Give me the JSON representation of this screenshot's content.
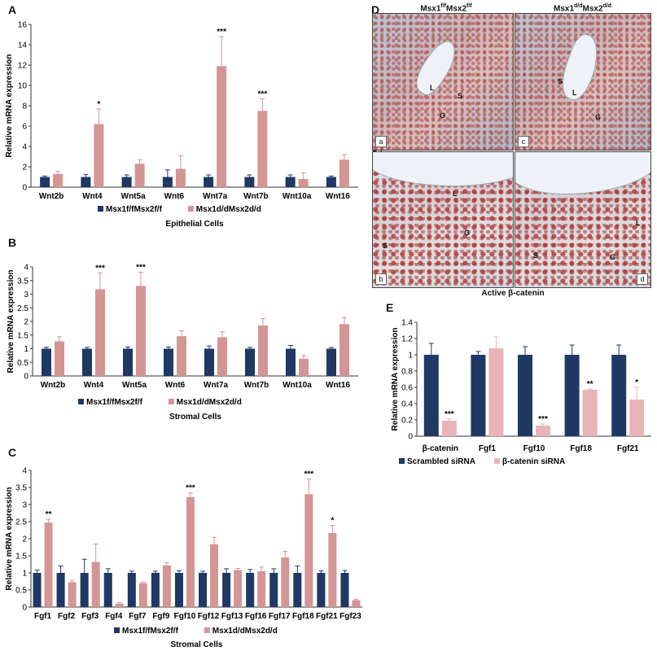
{
  "panels": {
    "A": "A",
    "B": "B",
    "C": "C",
    "D": "D",
    "E": "E"
  },
  "colors": {
    "dark": "#1f3864",
    "pink": "#d49595",
    "light_pink": "#e8b4b8"
  },
  "chart_data": [
    {
      "id": "A",
      "type": "bar",
      "title": "",
      "subtitle": "Epithelial Cells",
      "xlabel": "",
      "ylabel": "Relative mRNA expression",
      "ylim": [
        0,
        16
      ],
      "yticks": [
        0,
        2,
        4,
        6,
        8,
        10,
        12,
        14,
        16
      ],
      "categories": [
        "Wnt2b",
        "Wnt4",
        "Wnt5a",
        "Wnt6",
        "Wnt7a",
        "Wnt7b",
        "Wnt10a",
        "Wnt16"
      ],
      "series": [
        {
          "name": "Msx1f/fMsx2f/f",
          "color": "#1f3864",
          "values": [
            1.0,
            1.0,
            1.0,
            1.0,
            1.0,
            1.0,
            1.0,
            1.0
          ],
          "errors": [
            0.1,
            0.25,
            0.2,
            0.7,
            0.2,
            0.2,
            0.2,
            0.1
          ]
        },
        {
          "name": "Msx1d/dMsx2d/d",
          "color": "#d49595",
          "values": [
            1.3,
            6.2,
            2.3,
            1.8,
            11.9,
            7.5,
            0.8,
            2.7
          ],
          "errors": [
            0.25,
            1.5,
            0.4,
            1.3,
            2.9,
            1.2,
            0.6,
            0.5
          ]
        }
      ],
      "significance": [
        "",
        "*",
        "",
        "",
        "***",
        "***",
        "",
        ""
      ],
      "legend": "bottom"
    },
    {
      "id": "B",
      "type": "bar",
      "title": "",
      "subtitle": "Stromal Cells",
      "xlabel": "",
      "ylabel": "Relative mRNA expression",
      "ylim": [
        0,
        4
      ],
      "yticks": [
        0,
        0.5,
        1,
        1.5,
        2,
        2.5,
        3,
        3.5,
        4
      ],
      "categories": [
        "Wnt2b",
        "Wnt4",
        "Wnt5a",
        "Wnt6",
        "Wnt7a",
        "Wnt7b",
        "Wnt10a",
        "Wnt16"
      ],
      "series": [
        {
          "name": "Msx1f/fMsx2f/f",
          "color": "#1f3864",
          "values": [
            1.0,
            1.0,
            1.0,
            1.0,
            1.0,
            1.0,
            1.0,
            1.0
          ],
          "errors": [
            0.05,
            0.05,
            0.06,
            0.06,
            0.1,
            0.05,
            0.12,
            0.04
          ]
        },
        {
          "name": "Msx1d/dMsx2d/d",
          "color": "#d49595",
          "values": [
            1.27,
            3.18,
            3.3,
            1.46,
            1.42,
            1.85,
            0.63,
            1.9
          ],
          "errors": [
            0.17,
            0.6,
            0.5,
            0.2,
            0.2,
            0.25,
            0.12,
            0.25
          ]
        }
      ],
      "significance": [
        "",
        "***",
        "***",
        "",
        "",
        "",
        "",
        ""
      ],
      "legend": "bottom"
    },
    {
      "id": "C",
      "type": "bar",
      "title": "",
      "subtitle": "Stromal Cells",
      "xlabel": "",
      "ylabel": "Relative mRNA expression",
      "ylim": [
        0,
        4
      ],
      "yticks": [
        0,
        0.5,
        1,
        1.5,
        2,
        2.5,
        3,
        3.5,
        4
      ],
      "categories": [
        "Fgf1",
        "Fgf2",
        "Fgf3",
        "Fgf4",
        "Fgf7",
        "Fgf9",
        "Fgf10",
        "Fgf12",
        "Fgf13",
        "Fgf16",
        "Fgf17",
        "Fgf18",
        "Fgf21",
        "Fgf23"
      ],
      "series": [
        {
          "name": "Msx1f/fMsx2f/f",
          "color": "#1f3864",
          "values": [
            1.0,
            1.0,
            1.0,
            1.0,
            1.0,
            1.0,
            1.0,
            1.0,
            1.0,
            1.0,
            1.0,
            1.0,
            1.0,
            1.0
          ],
          "errors": [
            0.08,
            0.2,
            0.4,
            0.12,
            0.05,
            0.05,
            0.06,
            0.05,
            0.12,
            0.1,
            0.12,
            0.2,
            0.06,
            0.07
          ]
        },
        {
          "name": "Msx1d/dMsx2d/d",
          "color": "#d49595",
          "values": [
            2.47,
            0.73,
            1.32,
            0.1,
            0.7,
            1.22,
            3.22,
            1.84,
            1.08,
            1.05,
            1.45,
            3.3,
            2.17,
            0.2
          ],
          "errors": [
            0.1,
            0.05,
            0.52,
            0.03,
            0.03,
            0.08,
            0.12,
            0.2,
            0.05,
            0.12,
            0.18,
            0.45,
            0.22,
            0.03
          ]
        }
      ],
      "significance": [
        "**",
        "",
        "",
        "",
        "",
        "",
        "***",
        "",
        "",
        "",
        "",
        "***",
        "*",
        ""
      ],
      "legend": "bottom"
    },
    {
      "id": "E",
      "type": "bar",
      "title": "",
      "subtitle": "",
      "xlabel": "",
      "ylabel": "Relative mRNA expression",
      "ylim": [
        0,
        1.4
      ],
      "yticks": [
        0,
        0.2,
        0.4,
        0.6,
        0.8,
        1,
        1.2,
        1.4
      ],
      "categories": [
        "β-catenin",
        "Fgf1",
        "Fgf10",
        "Fgf18",
        "Fgf21"
      ],
      "series": [
        {
          "name": "Scrambled siRNA",
          "color": "#1f3864",
          "values": [
            1.0,
            1.0,
            1.0,
            1.0,
            1.0
          ],
          "errors": [
            0.14,
            0.04,
            0.1,
            0.12,
            0.12
          ]
        },
        {
          "name": "β-catenin siRNA",
          "color": "#e8b4b8",
          "values": [
            0.19,
            1.08,
            0.13,
            0.57,
            0.45
          ],
          "errors": [
            0.02,
            0.14,
            0.02,
            0.01,
            0.15
          ]
        }
      ],
      "significance": [
        "***",
        "",
        "***",
        "**",
        "*"
      ],
      "legend": "bottom"
    }
  ],
  "micrographs": {
    "left_title_main": "Msx1",
    "left_title_sup1": "f/f",
    "left_title_mid": "Msx2",
    "left_title_sup2": "f/f",
    "right_title_main": "Msx1",
    "right_title_sup1": "d/d",
    "right_title_mid": "Msx2",
    "right_title_sup2": "d/d",
    "row_label": "D4",
    "caption": "Active β-catenin",
    "labels": {
      "L": "L",
      "S": "S",
      "G": "G"
    },
    "letters": {
      "a": "a",
      "b": "b",
      "c": "c",
      "d": "d"
    }
  }
}
